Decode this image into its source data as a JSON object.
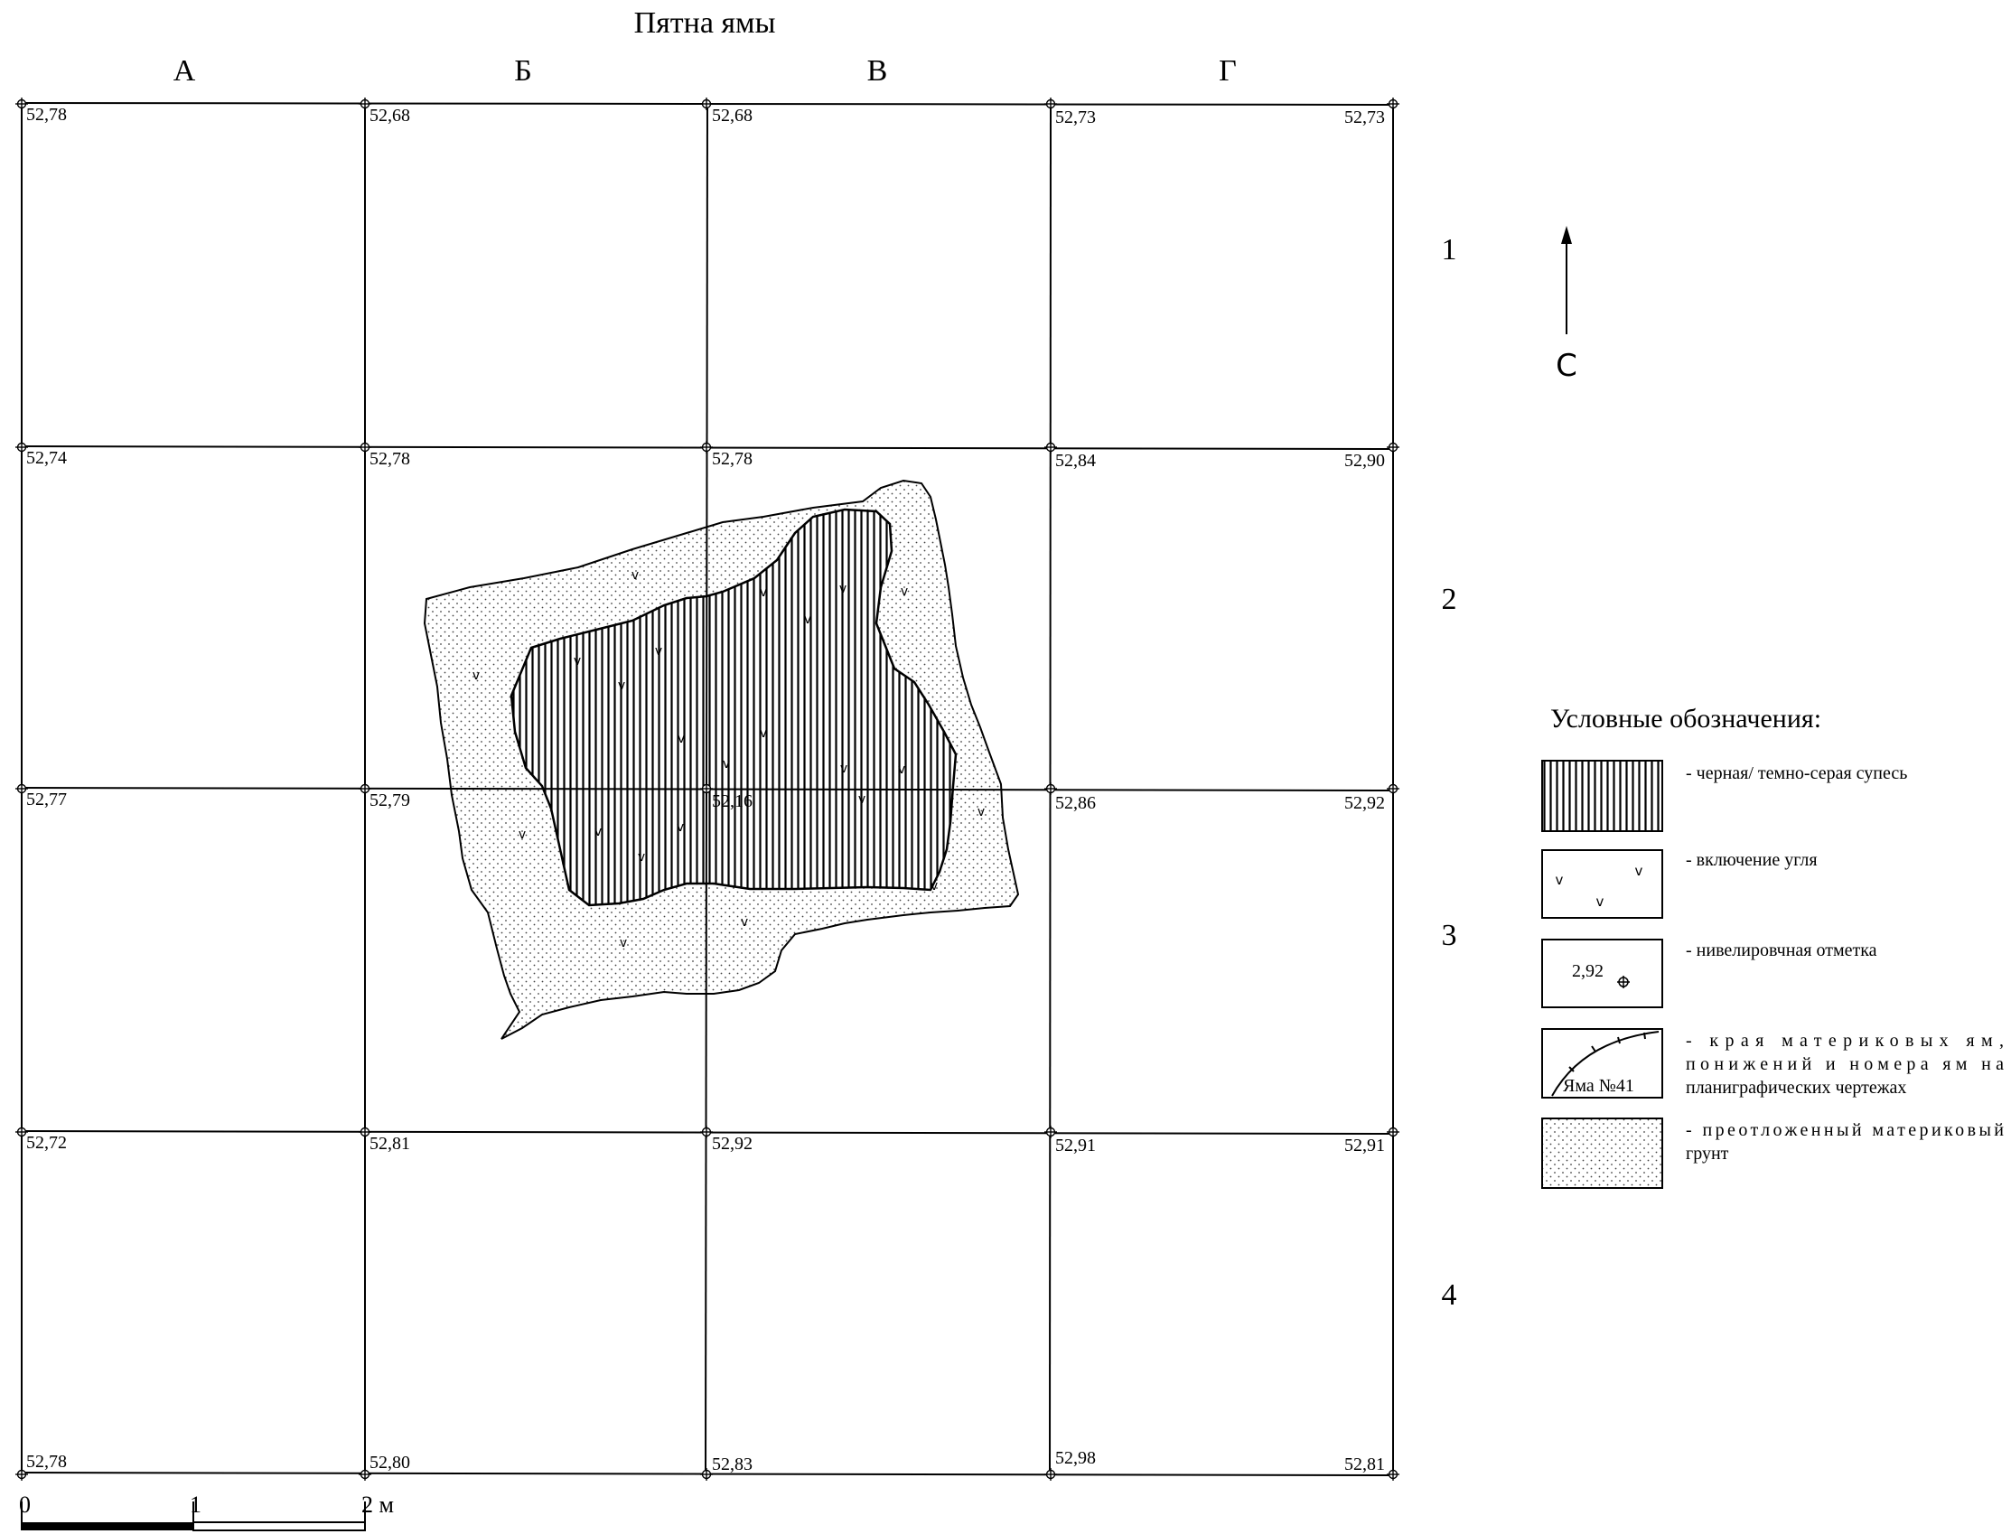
{
  "title": "Пятна ямы",
  "columns": [
    "А",
    "Б",
    "В",
    "Г"
  ],
  "rows": [
    "1",
    "2",
    "3",
    "4"
  ],
  "north": {
    "label": "С"
  },
  "elevations": {
    "grid": [
      [
        "52,78",
        "52,68",
        "52,68",
        "52,73",
        "52,73"
      ],
      [
        "52,74",
        "52,78",
        "52,78",
        "52,84",
        "52,90"
      ],
      [
        "52,77",
        "52,79",
        "",
        "52,86",
        "52,92"
      ],
      [
        "52,72",
        "52,81",
        "52,92",
        "52,91",
        "52,91"
      ],
      [
        "52,78",
        "52,80",
        "52,83",
        "52,98",
        "52,81"
      ]
    ],
    "pit_bottom": "52,16"
  },
  "legend": {
    "title": "Условные обозначения:",
    "items": [
      {
        "key": "black_sandy_loam",
        "text": "- черная/ темно-серая супесь"
      },
      {
        "key": "charcoal",
        "text": "- включение угля"
      },
      {
        "key": "level_mark",
        "text": "- нивелировчная отметка",
        "sample": "2,92"
      },
      {
        "key": "pit_edges",
        "lines": [
          "-     края      материковых     ям,",
          "понижений  и  номера  ям  на",
          "планиграфических чертежах"
        ],
        "sample": "Яма №41"
      },
      {
        "key": "redeposited_soil",
        "lines": [
          "-  преотложенный  материковый",
          "грунт"
        ]
      }
    ]
  },
  "scale": {
    "ticks": [
      "0",
      "1",
      "2 м"
    ]
  },
  "colors": {
    "line": "#000000",
    "fill_dark": "#ffffff",
    "fill_hatch": "#000000",
    "dots": "#555555"
  }
}
